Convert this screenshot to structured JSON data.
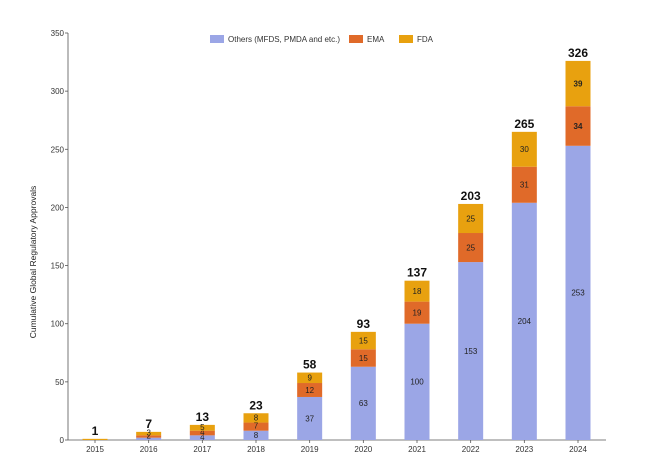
{
  "chart_data": {
    "type": "bar",
    "stacked": true,
    "title": "",
    "xlabel": "",
    "ylabel": "Cumulative Global Regulatory Approvals",
    "ylim": [
      0,
      350
    ],
    "yticks": [
      0,
      50,
      100,
      150,
      200,
      250,
      300,
      350
    ],
    "categories": [
      "2015",
      "2016",
      "2017",
      "2018",
      "2019",
      "2020",
      "2021",
      "2022",
      "2023",
      "2024"
    ],
    "series": [
      {
        "name": "Others (MFDS, PMDA and etc.)",
        "color": "#9BA6E6",
        "values": [
          0,
          2,
          4,
          8,
          37,
          63,
          100,
          153,
          204,
          253
        ]
      },
      {
        "name": "EMA",
        "color": "#E06A29",
        "values": [
          0,
          2,
          4,
          7,
          12,
          15,
          19,
          25,
          31,
          34
        ]
      },
      {
        "name": "FDA",
        "color": "#E8A10F",
        "values": [
          1,
          3,
          5,
          8,
          9,
          15,
          18,
          25,
          30,
          39
        ]
      }
    ],
    "segment_labels": [
      [
        "",
        "",
        "4",
        "8",
        "37",
        "63",
        "100",
        "153",
        "204",
        "253"
      ],
      [
        "",
        "2",
        "4",
        "7",
        "12",
        "15",
        "19",
        "25",
        "31",
        "34"
      ],
      [
        "",
        "3",
        "5",
        "8",
        "9",
        "15",
        "18",
        "25",
        "30",
        "39"
      ]
    ],
    "totals": [
      "1",
      "7",
      "13",
      "23",
      "58",
      "93",
      "137",
      "203",
      "265",
      "326"
    ],
    "legend_position": "top-center",
    "grid": false
  }
}
